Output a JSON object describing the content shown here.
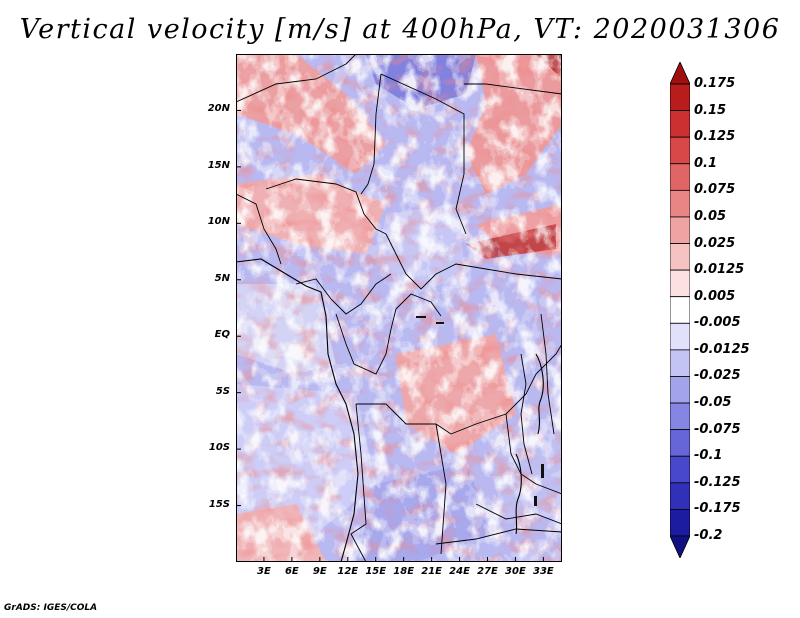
{
  "title": "Vertical velocity [m/s] at 400hPa, VT: 2020031306",
  "footer": "GrADS: IGES/COLA",
  "map": {
    "lon_range": [
      0,
      35
    ],
    "lat_range": [
      -20,
      25
    ],
    "lat_labels": [
      {
        "lat": 20,
        "text": "20N"
      },
      {
        "lat": 15,
        "text": "15N"
      },
      {
        "lat": 10,
        "text": "10N"
      },
      {
        "lat": 5,
        "text": "5N"
      },
      {
        "lat": 0,
        "text": "EQ"
      },
      {
        "lat": -5,
        "text": "5S"
      },
      {
        "lat": -10,
        "text": "10S"
      },
      {
        "lat": -15,
        "text": "15S"
      }
    ],
    "lon_labels": [
      {
        "lon": 3,
        "text": "3E"
      },
      {
        "lon": 6,
        "text": "6E"
      },
      {
        "lon": 9,
        "text": "9E"
      },
      {
        "lon": 12,
        "text": "12E"
      },
      {
        "lon": 15,
        "text": "15E"
      },
      {
        "lon": 18,
        "text": "18E"
      },
      {
        "lon": 21,
        "text": "21E"
      },
      {
        "lon": 24,
        "text": "24E"
      },
      {
        "lon": 27,
        "text": "27E"
      },
      {
        "lon": 30,
        "text": "30E"
      },
      {
        "lon": 33,
        "text": "33E"
      }
    ]
  },
  "colorbar": {
    "labels": [
      "0.175",
      "0.15",
      "0.125",
      "0.1",
      "0.075",
      "0.05",
      "0.025",
      "0.0125",
      "0.005",
      "-0.005",
      "-0.0125",
      "-0.025",
      "-0.05",
      "-0.075",
      "-0.1",
      "-0.125",
      "-0.175",
      "-0.2"
    ],
    "colors": [
      "#a01010",
      "#b81c1c",
      "#cc3030",
      "#d94848",
      "#e06666",
      "#e88585",
      "#f0a3a3",
      "#f6c3c3",
      "#fbe1e1",
      "#ffffff",
      "#e1e1fb",
      "#c3c3f4",
      "#a3a3ec",
      "#8585e3",
      "#6666d9",
      "#4848cc",
      "#3030b8",
      "#1c1ca0",
      "#101080"
    ]
  }
}
